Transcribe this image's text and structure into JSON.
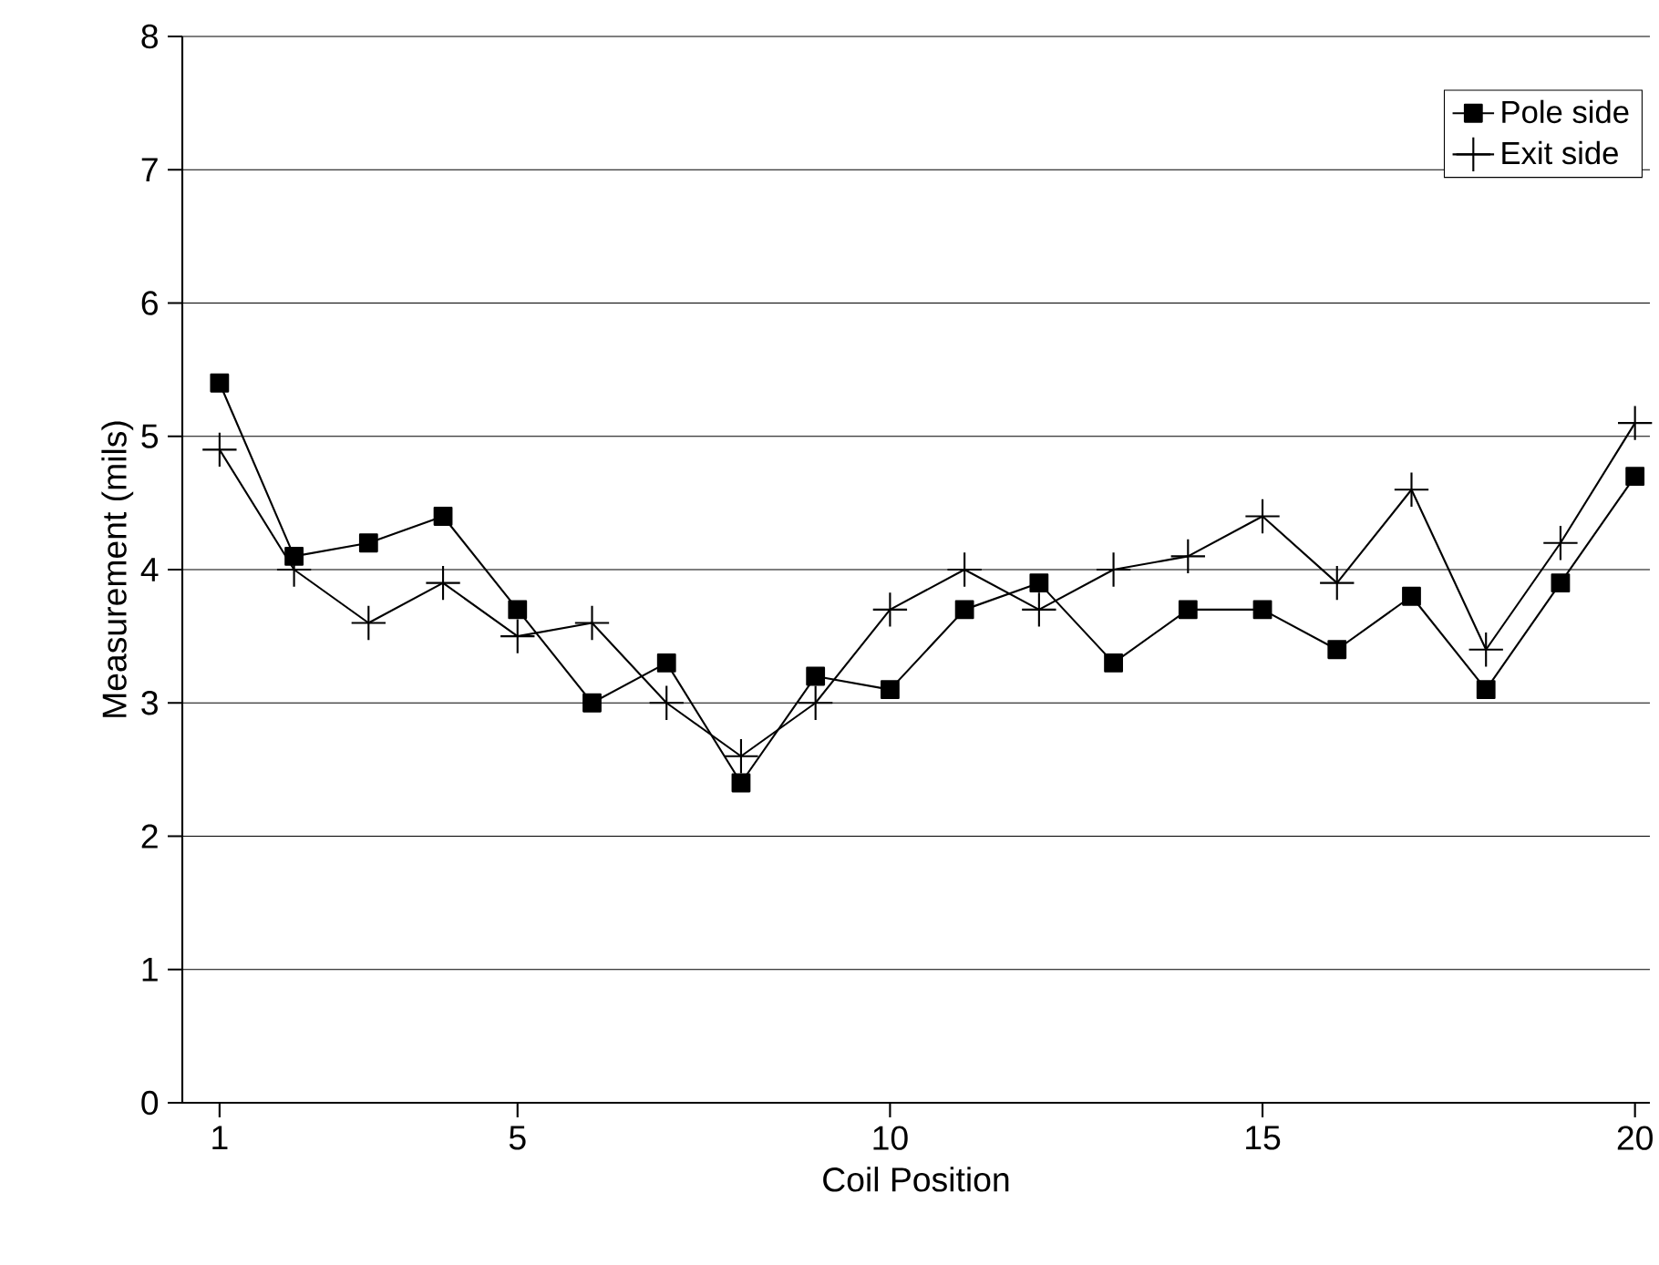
{
  "chart_data": {
    "type": "line",
    "xlabel": "Coil Position",
    "ylabel": "Measurement (mils)",
    "x": [
      1,
      2,
      3,
      4,
      5,
      6,
      7,
      8,
      9,
      10,
      11,
      12,
      13,
      14,
      15,
      16,
      17,
      18,
      19,
      20
    ],
    "series": [
      {
        "name": "Pole side",
        "color": "#000000",
        "marker": "square",
        "values": [
          5.4,
          4.1,
          4.2,
          4.4,
          3.7,
          3.0,
          3.3,
          2.4,
          3.2,
          3.1,
          3.7,
          3.9,
          3.3,
          3.7,
          3.7,
          3.4,
          3.8,
          3.1,
          3.9,
          4.7
        ]
      },
      {
        "name": "Exit side",
        "color": "#000000",
        "marker": "cross",
        "values": [
          4.9,
          4.0,
          3.6,
          3.9,
          3.5,
          3.6,
          3.0,
          2.6,
          3.0,
          3.7,
          4.0,
          3.7,
          4.0,
          4.1,
          4.4,
          3.9,
          4.6,
          3.4,
          4.2,
          5.1
        ]
      }
    ],
    "xlim": [
      0.5,
      20.2
    ],
    "ylim": [
      0,
      8
    ],
    "xticks": [
      1,
      5,
      10,
      15,
      20
    ],
    "yticks": [
      0,
      1,
      2,
      3,
      4,
      5,
      6,
      7,
      8
    ],
    "grid": "y",
    "legend": "top right",
    "line_style": "solid"
  }
}
